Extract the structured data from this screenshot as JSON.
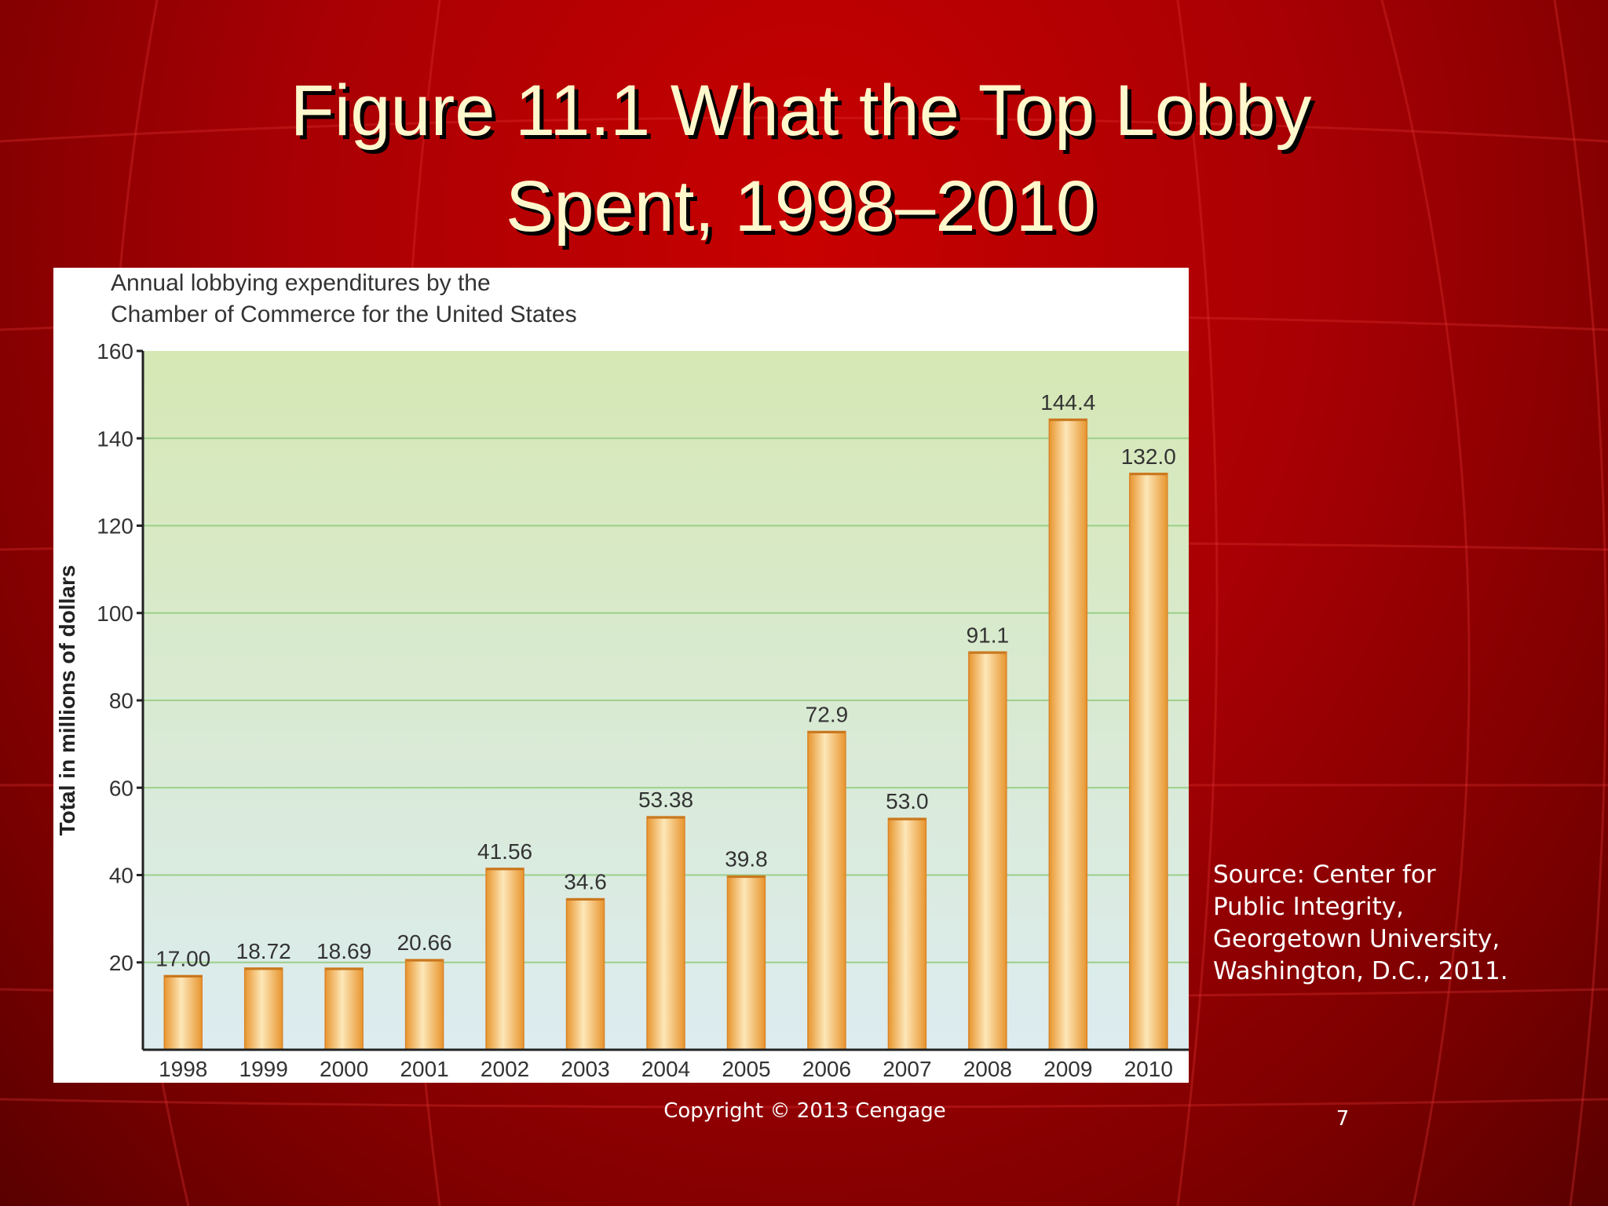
{
  "slide": {
    "title_line1": "Figure 11.1  What the Top Lobby",
    "title_line2": "Spent, 1998–2010",
    "source": "Source: Center for Public Integrity, Georgetown University, Washington, D.C., 2011.",
    "copyright": "Copyright © 2013 Cengage",
    "page_number": "7"
  },
  "colors": {
    "background": "#a80004",
    "plot_top": "#d6e8b4",
    "plot_bottom": "#dcecf0",
    "gridline": "#9ccf8a",
    "bar_light": "#fde7b8",
    "bar_dark": "#e8952e"
  },
  "chart_data": {
    "type": "bar",
    "subtitle_line1": "Annual lobbying expenditures by the",
    "subtitle_line2": "Chamber of Commerce for the United States",
    "ylabel": "Total in millions of dollars",
    "xlabel": "",
    "ylim": [
      0,
      160
    ],
    "yticks": [
      20,
      40,
      60,
      80,
      100,
      120,
      140,
      160
    ],
    "grid": true,
    "categories": [
      "1998",
      "1999",
      "2000",
      "2001",
      "2002",
      "2003",
      "2004",
      "2005",
      "2006",
      "2007",
      "2008",
      "2009",
      "2010"
    ],
    "values": [
      17.0,
      18.72,
      18.69,
      20.66,
      41.56,
      34.6,
      53.38,
      39.8,
      72.9,
      53.0,
      91.1,
      144.4,
      132.0
    ],
    "value_labels": [
      "17.00",
      "18.72",
      "18.69",
      "20.66",
      "41.56",
      "34.6",
      "53.38",
      "39.8",
      "72.9",
      "53.0",
      "91.1",
      "144.4",
      "132.0"
    ]
  }
}
